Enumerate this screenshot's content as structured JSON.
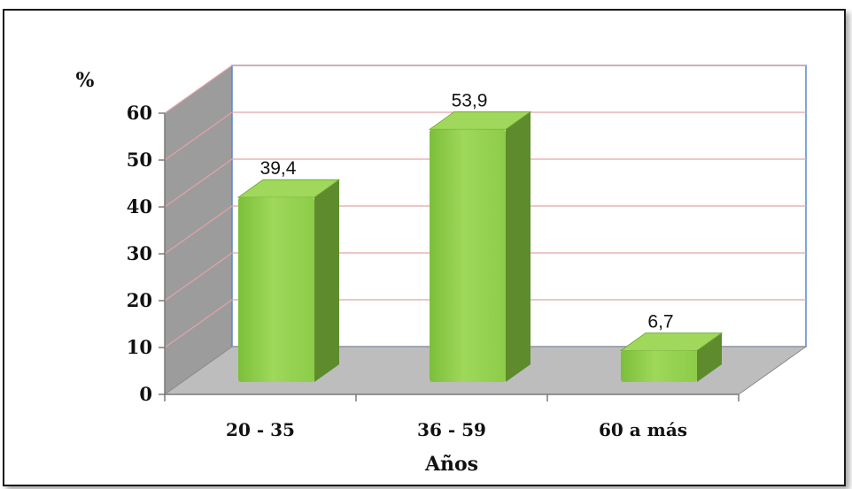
{
  "chart_data": {
    "type": "bar",
    "categories": [
      "20 - 35",
      "36 - 59",
      "60 a más"
    ],
    "values": [
      39.4,
      53.9,
      6.7
    ],
    "data_labels": [
      "39,4",
      "53,9",
      "6,7"
    ],
    "ylim": [
      0,
      60
    ],
    "yticks": [
      "0",
      "10",
      "20",
      "30",
      "40",
      "50",
      "60"
    ],
    "ylabel": "%",
    "xlabel": "Años",
    "grid": true,
    "legend": "none",
    "colors": {
      "bar_front": "#8ccc48",
      "bar_side": "#5e8c2c",
      "bar_top": "#9fd85a",
      "grid": "#e3a3a8",
      "back_wall_edge": "#5b86c7",
      "side_wall": "#9c9c9c",
      "floor": "#bdbdbd"
    }
  }
}
